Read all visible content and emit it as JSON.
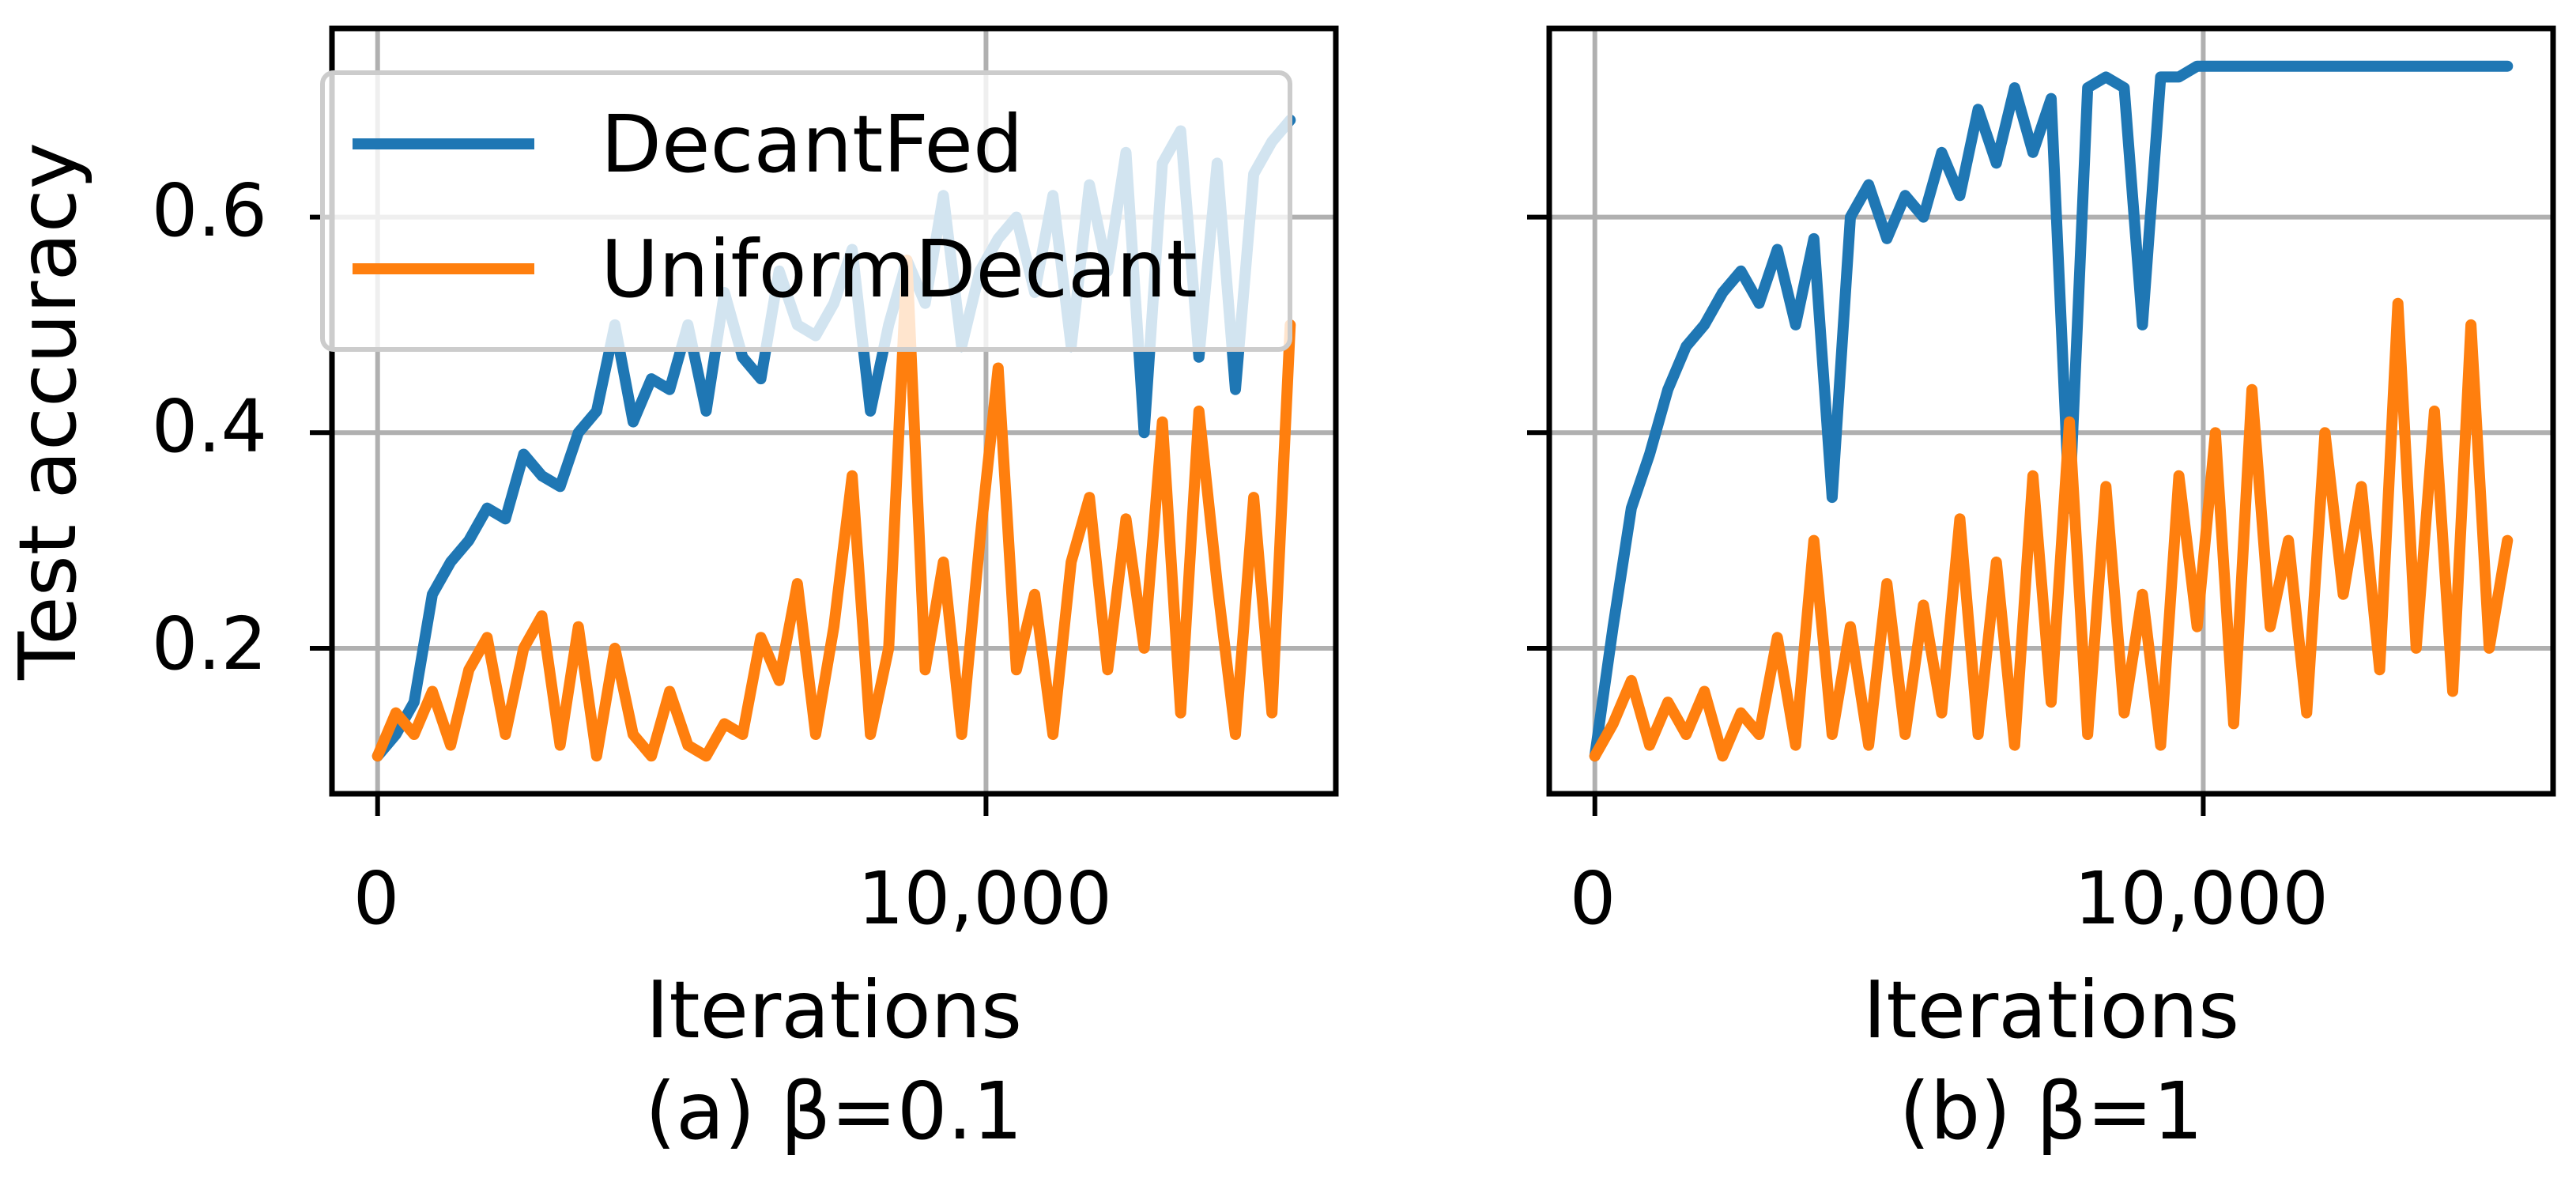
{
  "colors": {
    "decantfed": "#1f77b4",
    "uniformdecant": "#ff7f0e",
    "grid": "#b0b0b0",
    "axes": "#000000"
  },
  "legend": {
    "placement": "upper-left of panel (a)",
    "entries": [
      "DecantFed",
      "UniformDecant"
    ]
  },
  "shared_y_label": "Test accuracy",
  "panels": [
    {
      "caption": "(a) β=0.1",
      "xlabel": "Iterations",
      "xticks": [
        "0",
        "10,000"
      ],
      "yticks": [
        "0.2",
        "0.4",
        "0.6"
      ]
    },
    {
      "caption": "(b) β=1",
      "xlabel": "Iterations",
      "xticks": [
        "0",
        "10,000"
      ],
      "yticks": []
    }
  ],
  "chart_data": [
    {
      "type": "line",
      "title": "(a) β=0.1",
      "xlabel": "Iterations",
      "ylabel": "Test accuracy",
      "xlim": [
        -750,
        15750
      ],
      "ylim": [
        0.065,
        0.775
      ],
      "xticks": [
        0,
        10000
      ],
      "yticks": [
        0.2,
        0.4,
        0.6
      ],
      "grid": true,
      "legend": "upper-left",
      "series": [
        {
          "name": "DecantFed",
          "color": "#1f77b4",
          "x": [
            0,
            300,
            600,
            900,
            1200,
            1500,
            1800,
            2100,
            2400,
            2700,
            3000,
            3300,
            3600,
            3900,
            4200,
            4500,
            4800,
            5100,
            5400,
            5700,
            6000,
            6300,
            6600,
            6900,
            7200,
            7500,
            7800,
            8100,
            8400,
            8700,
            9000,
            9300,
            9600,
            9900,
            10200,
            10500,
            10800,
            11100,
            11400,
            11700,
            12000,
            12300,
            12600,
            12900,
            13200,
            13500,
            13800,
            14100,
            14400,
            14700,
            15000
          ],
          "y": [
            0.1,
            0.12,
            0.15,
            0.25,
            0.28,
            0.3,
            0.33,
            0.32,
            0.38,
            0.36,
            0.35,
            0.4,
            0.42,
            0.5,
            0.41,
            0.45,
            0.44,
            0.5,
            0.42,
            0.53,
            0.47,
            0.45,
            0.55,
            0.5,
            0.49,
            0.52,
            0.57,
            0.42,
            0.5,
            0.56,
            0.52,
            0.62,
            0.48,
            0.55,
            0.58,
            0.6,
            0.53,
            0.62,
            0.48,
            0.63,
            0.55,
            0.66,
            0.4,
            0.65,
            0.68,
            0.47,
            0.65,
            0.44,
            0.64,
            0.67,
            0.69
          ]
        },
        {
          "name": "UniformDecant",
          "color": "#ff7f0e",
          "x": [
            0,
            300,
            600,
            900,
            1200,
            1500,
            1800,
            2100,
            2400,
            2700,
            3000,
            3300,
            3600,
            3900,
            4200,
            4500,
            4800,
            5100,
            5400,
            5700,
            6000,
            6300,
            6600,
            6900,
            7200,
            7500,
            7800,
            8100,
            8400,
            8700,
            9000,
            9300,
            9600,
            9900,
            10200,
            10500,
            10800,
            11100,
            11400,
            11700,
            12000,
            12300,
            12600,
            12900,
            13200,
            13500,
            13800,
            14100,
            14400,
            14700,
            15000
          ],
          "y": [
            0.1,
            0.14,
            0.12,
            0.16,
            0.11,
            0.18,
            0.21,
            0.12,
            0.2,
            0.23,
            0.11,
            0.22,
            0.1,
            0.2,
            0.12,
            0.1,
            0.16,
            0.11,
            0.1,
            0.13,
            0.12,
            0.21,
            0.17,
            0.26,
            0.12,
            0.22,
            0.36,
            0.12,
            0.2,
            0.56,
            0.18,
            0.28,
            0.12,
            0.3,
            0.46,
            0.18,
            0.25,
            0.12,
            0.28,
            0.34,
            0.18,
            0.32,
            0.2,
            0.41,
            0.14,
            0.42,
            0.26,
            0.12,
            0.34,
            0.14,
            0.5
          ]
        }
      ]
    },
    {
      "type": "line",
      "title": "(b) β=1",
      "xlabel": "Iterations",
      "ylabel": "",
      "xlim": [
        -750,
        15750
      ],
      "ylim": [
        0.065,
        0.775
      ],
      "xticks": [
        0,
        10000
      ],
      "yticks": [
        0.2,
        0.4,
        0.6
      ],
      "grid": true,
      "series": [
        {
          "name": "DecantFed",
          "color": "#1f77b4",
          "x": [
            0,
            300,
            600,
            900,
            1200,
            1500,
            1800,
            2100,
            2400,
            2700,
            3000,
            3300,
            3600,
            3900,
            4200,
            4500,
            4800,
            5100,
            5400,
            5700,
            6000,
            6300,
            6600,
            6900,
            7200,
            7500,
            7800,
            8100,
            8400,
            8700,
            9000,
            9300,
            9600,
            9900,
            10200,
            10500,
            10800,
            11100,
            11400,
            11700,
            12000,
            12300,
            12600,
            12900,
            13200,
            13500,
            13800,
            14100,
            14400,
            14700,
            15000
          ],
          "y": [
            0.1,
            0.22,
            0.33,
            0.38,
            0.44,
            0.48,
            0.5,
            0.53,
            0.55,
            0.52,
            0.57,
            0.5,
            0.58,
            0.34,
            0.6,
            0.63,
            0.58,
            0.62,
            0.6,
            0.66,
            0.62,
            0.7,
            0.65,
            0.72,
            0.66,
            0.71,
            0.33,
            0.72,
            0.73,
            0.72,
            0.5,
            0.73,
            0.73,
            0.74,
            0.74,
            0.74,
            0.74,
            0.74,
            0.74,
            0.74,
            0.74,
            0.74,
            0.74,
            0.74,
            0.74,
            0.74,
            0.74,
            0.74,
            0.74,
            0.74,
            0.74
          ]
        },
        {
          "name": "UniformDecant",
          "color": "#ff7f0e",
          "x": [
            0,
            300,
            600,
            900,
            1200,
            1500,
            1800,
            2100,
            2400,
            2700,
            3000,
            3300,
            3600,
            3900,
            4200,
            4500,
            4800,
            5100,
            5400,
            5700,
            6000,
            6300,
            6600,
            6900,
            7200,
            7500,
            7800,
            8100,
            8400,
            8700,
            9000,
            9300,
            9600,
            9900,
            10200,
            10500,
            10800,
            11100,
            11400,
            11700,
            12000,
            12300,
            12600,
            12900,
            13200,
            13500,
            13800,
            14100,
            14400,
            14700,
            15000
          ],
          "y": [
            0.1,
            0.13,
            0.17,
            0.11,
            0.15,
            0.12,
            0.16,
            0.1,
            0.14,
            0.12,
            0.21,
            0.11,
            0.3,
            0.12,
            0.22,
            0.11,
            0.26,
            0.12,
            0.24,
            0.14,
            0.32,
            0.12,
            0.28,
            0.11,
            0.36,
            0.15,
            0.41,
            0.12,
            0.35,
            0.14,
            0.25,
            0.11,
            0.36,
            0.22,
            0.4,
            0.13,
            0.44,
            0.22,
            0.3,
            0.14,
            0.4,
            0.25,
            0.35,
            0.18,
            0.52,
            0.2,
            0.42,
            0.16,
            0.5,
            0.2,
            0.3
          ]
        }
      ]
    }
  ]
}
